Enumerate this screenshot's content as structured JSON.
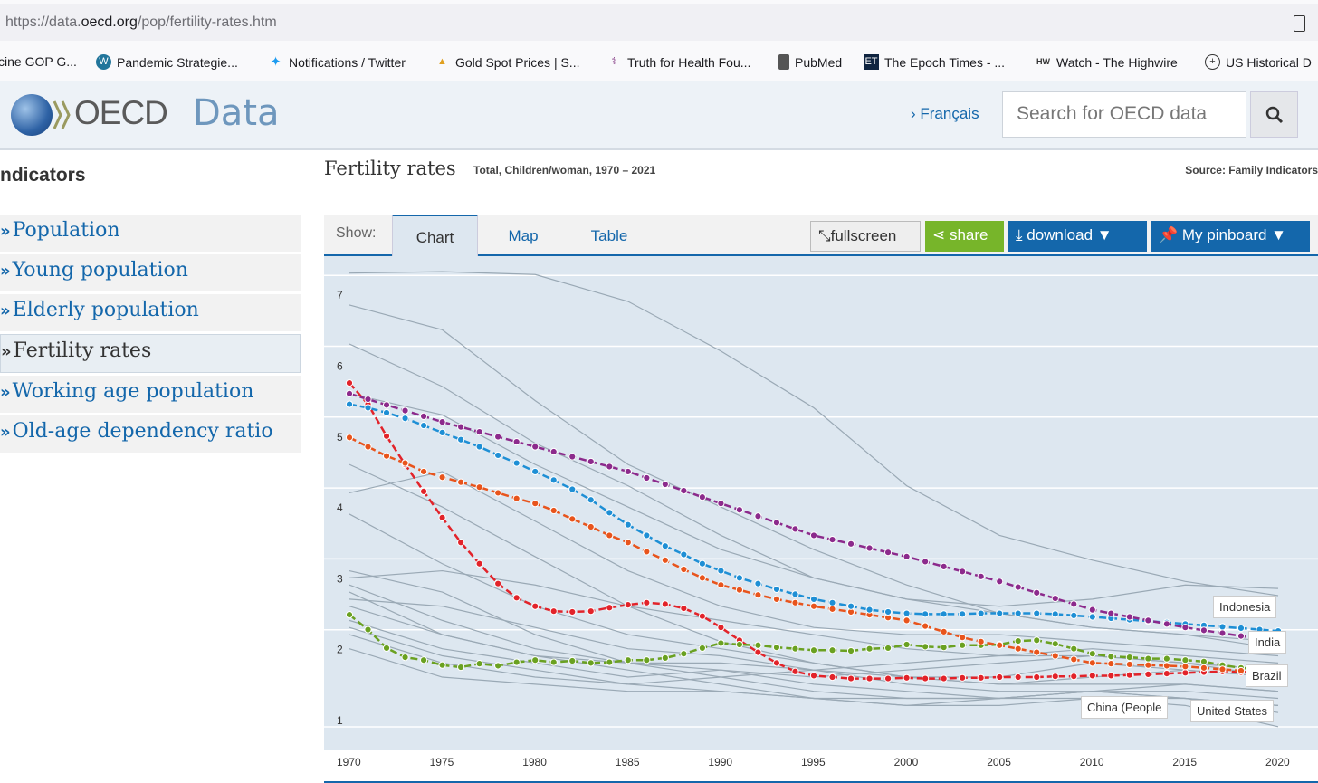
{
  "browser": {
    "url_prefix": "https://data.",
    "url_domain": "oecd.org",
    "url_path": "/pop/fertility-rates.htm",
    "bookmarks": [
      "cine GOP G...",
      "Pandemic Strategie...",
      "Notifications / Twitter",
      "Gold Spot Prices | S...",
      "Truth for Health Fou...",
      "PubMed",
      "The Epoch Times - ...",
      "Watch - The Highwire",
      "US Historical D"
    ]
  },
  "header": {
    "logo_text": "OECD",
    "site": "Data",
    "lang_link": "› Français",
    "search_placeholder": "Search for OECD data"
  },
  "sidebar": {
    "heading": "ndicators",
    "items": [
      "Population",
      "Young population",
      "Elderly population",
      "Fertility rates",
      "Working age population",
      "Old-age dependency ratio"
    ],
    "selected": 3
  },
  "page": {
    "title": "Fertility rates",
    "subtitle": "Total, Children/woman, 1970 – 2021",
    "source": "Source: Family Indicators"
  },
  "tabs": {
    "show_label": "Show:",
    "items": [
      "Chart",
      "Map",
      "Table"
    ],
    "active": 0
  },
  "toolbar": {
    "fullscreen": "fullscreen",
    "share": "share",
    "download": "download ▼",
    "pinboard": "My pinboard ▼"
  },
  "colors": {
    "china": "#e2232a",
    "usa": "#6aa121",
    "brazil": "#e8541c",
    "indonesia": "#1e8fd5",
    "india": "#8c2a8c",
    "other": "#9aa9b5"
  },
  "chart_data": {
    "type": "line",
    "title": "Fertility rates",
    "ylabel": "Children/woman",
    "ylim": [
      0.7,
      7.3
    ],
    "xlim": [
      1970,
      2021
    ],
    "yticks": [
      1,
      2,
      3,
      4,
      5,
      6,
      7
    ],
    "xticks": [
      1970,
      1975,
      1980,
      1985,
      1990,
      1995,
      2000,
      2005,
      2010,
      2015,
      2020
    ],
    "start_year": 1970,
    "series": [
      {
        "name": "China (People's Republic of)",
        "label": "China (People",
        "color": "#e2232a",
        "values": [
          5.75,
          5.45,
          5.0,
          4.6,
          4.22,
          3.85,
          3.5,
          3.2,
          2.92,
          2.72,
          2.6,
          2.53,
          2.52,
          2.53,
          2.58,
          2.62,
          2.65,
          2.63,
          2.57,
          2.46,
          2.3,
          2.12,
          1.95,
          1.8,
          1.68,
          1.62,
          1.6,
          1.58,
          1.58,
          1.58,
          1.59,
          1.58,
          1.58,
          1.59,
          1.59,
          1.6,
          1.6,
          1.6,
          1.61,
          1.61,
          1.62,
          1.62,
          1.63,
          1.64,
          1.65,
          1.66,
          1.67,
          1.68,
          1.67,
          1.68,
          1.7
        ]
      },
      {
        "name": "United States",
        "label": "United States",
        "color": "#6aa121",
        "values": [
          2.48,
          2.27,
          2.01,
          1.88,
          1.84,
          1.77,
          1.74,
          1.79,
          1.76,
          1.81,
          1.84,
          1.81,
          1.83,
          1.8,
          1.81,
          1.84,
          1.84,
          1.87,
          1.93,
          2.01,
          2.08,
          2.06,
          2.05,
          2.02,
          2.0,
          1.98,
          1.98,
          1.97,
          2.0,
          2.01,
          2.06,
          2.03,
          2.02,
          2.05,
          2.05,
          2.06,
          2.11,
          2.12,
          2.07,
          2.0,
          1.93,
          1.89,
          1.88,
          1.86,
          1.86,
          1.84,
          1.82,
          1.77,
          1.73,
          1.71,
          1.64
        ]
      },
      {
        "name": "Brazil",
        "label": "Brazil",
        "color": "#e8541c",
        "values": [
          4.98,
          4.85,
          4.72,
          4.62,
          4.5,
          4.42,
          4.35,
          4.28,
          4.2,
          4.12,
          4.05,
          3.95,
          3.83,
          3.72,
          3.6,
          3.5,
          3.37,
          3.25,
          3.12,
          3.0,
          2.9,
          2.83,
          2.76,
          2.7,
          2.65,
          2.6,
          2.56,
          2.52,
          2.48,
          2.44,
          2.4,
          2.32,
          2.24,
          2.16,
          2.1,
          2.05,
          2.0,
          1.95,
          1.9,
          1.85,
          1.8,
          1.79,
          1.78,
          1.77,
          1.76,
          1.75,
          1.73,
          1.71,
          1.69,
          1.67,
          1.65
        ]
      },
      {
        "name": "Indonesia",
        "label": "Indonesia",
        "color": "#1e8fd5",
        "values": [
          5.45,
          5.4,
          5.33,
          5.25,
          5.15,
          5.05,
          4.95,
          4.85,
          4.73,
          4.62,
          4.5,
          4.38,
          4.25,
          4.1,
          3.92,
          3.75,
          3.6,
          3.45,
          3.33,
          3.2,
          3.1,
          3.0,
          2.92,
          2.84,
          2.77,
          2.7,
          2.65,
          2.6,
          2.55,
          2.52,
          2.5,
          2.49,
          2.49,
          2.49,
          2.5,
          2.5,
          2.5,
          2.5,
          2.49,
          2.47,
          2.45,
          2.43,
          2.41,
          2.39,
          2.37,
          2.35,
          2.33,
          2.31,
          2.29,
          2.27,
          2.25
        ]
      },
      {
        "name": "India",
        "label": "India",
        "color": "#8c2a8c",
        "values": [
          5.6,
          5.52,
          5.44,
          5.36,
          5.28,
          5.2,
          5.13,
          5.06,
          4.99,
          4.92,
          4.85,
          4.78,
          4.71,
          4.64,
          4.57,
          4.5,
          4.41,
          4.32,
          4.23,
          4.14,
          4.05,
          3.96,
          3.87,
          3.78,
          3.69,
          3.6,
          3.54,
          3.48,
          3.42,
          3.36,
          3.3,
          3.23,
          3.16,
          3.09,
          3.02,
          2.95,
          2.87,
          2.79,
          2.71,
          2.63,
          2.55,
          2.5,
          2.45,
          2.4,
          2.35,
          2.3,
          2.26,
          2.22,
          2.18,
          2.14,
          2.1
        ]
      }
    ],
    "other_series_step": 5,
    "other_series": [
      [
        7.3,
        7.32,
        7.28,
        6.9,
        6.2,
        5.4,
        4.3,
        3.6,
        3.25,
        2.95,
        2.75
      ],
      [
        6.85,
        6.5,
        5.5,
        4.6,
        4.0,
        3.4,
        2.9,
        2.5,
        2.3,
        2.2,
        2.0
      ],
      [
        6.3,
        5.7,
        4.9,
        4.3,
        3.6,
        3.0,
        2.7,
        2.5,
        2.3,
        2.2,
        2.1
      ],
      [
        5.6,
        5.3,
        4.6,
        4.0,
        3.4,
        3.0,
        2.7,
        2.6,
        2.7,
        2.9,
        2.85
      ],
      [
        4.6,
        4.0,
        3.3,
        2.6,
        2.1,
        1.8,
        1.6,
        1.5,
        1.5,
        1.5,
        1.4
      ],
      [
        4.2,
        4.5,
        3.8,
        3.1,
        2.6,
        2.3,
        2.2,
        2.2,
        2.1,
        2.0,
        1.9
      ],
      [
        3.9,
        3.2,
        2.6,
        2.2,
        2.0,
        1.8,
        1.6,
        1.5,
        1.6,
        1.7,
        1.6
      ],
      [
        3.1,
        2.8,
        2.2,
        1.8,
        1.6,
        1.4,
        1.3,
        1.3,
        1.4,
        1.3,
        1.2
      ],
      [
        2.9,
        2.4,
        2.0,
        1.8,
        1.7,
        1.6,
        1.7,
        1.8,
        1.9,
        1.8,
        1.6
      ],
      [
        2.8,
        2.2,
        1.9,
        1.7,
        1.5,
        1.3,
        1.2,
        1.3,
        1.4,
        1.3,
        1.1
      ],
      [
        2.6,
        2.2,
        1.9,
        1.8,
        1.8,
        1.7,
        1.6,
        1.6,
        1.8,
        1.7,
        1.6
      ],
      [
        2.4,
        2.0,
        1.8,
        1.6,
        1.7,
        1.5,
        1.4,
        1.3,
        1.4,
        1.4,
        1.3
      ],
      [
        2.3,
        1.9,
        1.7,
        1.5,
        1.4,
        1.3,
        1.3,
        1.3,
        1.3,
        1.3,
        1.2
      ],
      [
        2.2,
        1.8,
        1.6,
        1.5,
        1.6,
        1.7,
        1.8,
        1.9,
        2.0,
        1.9,
        1.8
      ],
      [
        2.0,
        1.6,
        1.5,
        1.4,
        1.4,
        1.3,
        1.2,
        1.2,
        1.3,
        1.2,
        0.9
      ],
      [
        3.0,
        3.1,
        2.9,
        2.6,
        2.4,
        2.2,
        2.0,
        1.9,
        1.9,
        1.8,
        1.7
      ],
      [
        2.7,
        2.6,
        2.3,
        2.0,
        1.9,
        1.7,
        1.5,
        1.4,
        1.4,
        1.5,
        1.4
      ]
    ]
  }
}
